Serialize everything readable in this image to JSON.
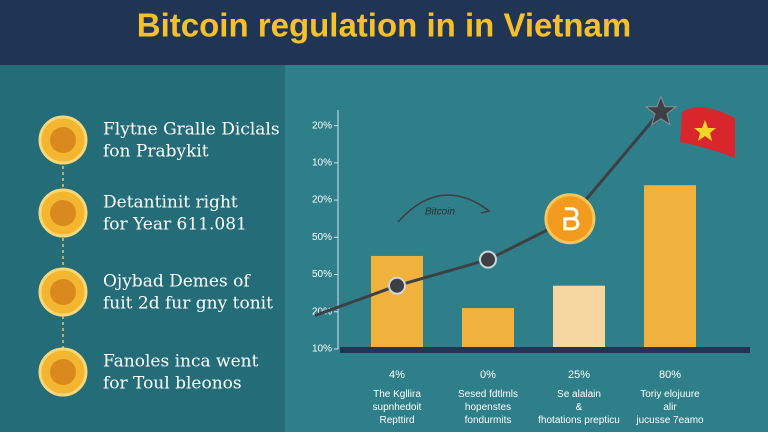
{
  "header": {
    "title": "Bitcoin regulation in in Vietnam"
  },
  "items": [
    {
      "lines": [
        "Flytne Gralle Diclals",
        "fon Prabykit"
      ]
    },
    {
      "lines": [
        "Detantinit right",
        "for Year 611.081"
      ]
    },
    {
      "lines": [
        "Ojybad Demes of",
        "fuit 2d fur gny tonit"
      ]
    },
    {
      "lines": [
        "Fanoles inca went",
        "for Toul bleonos"
      ]
    }
  ],
  "chart_data": {
    "type": "bar",
    "categories": [
      "The Kgllira supnhedoit Repttird",
      "Sesed fdtlmls hopenstes fondurmits",
      "Se alalain & fhotations prepticu",
      "Toriy elojuure alir jucusse 7eamo"
    ],
    "bar_labels": [
      "4%",
      "0%",
      "25%",
      "80%"
    ],
    "values": [
      2.5,
      1.1,
      1.7,
      4.4
    ],
    "colors": [
      "#f0b23c",
      "#f0b23c",
      "#f6d7a2",
      "#f0b23c"
    ],
    "line": {
      "x": [
        -0.9,
        0,
        1,
        1.9,
        2.9
      ],
      "values": [
        0.9,
        1.7,
        2.4,
        3.5,
        6.4
      ],
      "color": "#3d3f44"
    },
    "annotation": "Bitcoin",
    "ylim": [
      0,
      6.5
    ],
    "yticks": [
      {
        "value": 0,
        "label": "10%"
      },
      {
        "value": 1,
        "label": "20%"
      },
      {
        "value": 2,
        "label": "50%"
      },
      {
        "value": 3,
        "label": "50%"
      },
      {
        "value": 4,
        "label": "20%"
      },
      {
        "value": 5,
        "label": "10%"
      },
      {
        "value": 6,
        "label": "20%"
      }
    ]
  }
}
